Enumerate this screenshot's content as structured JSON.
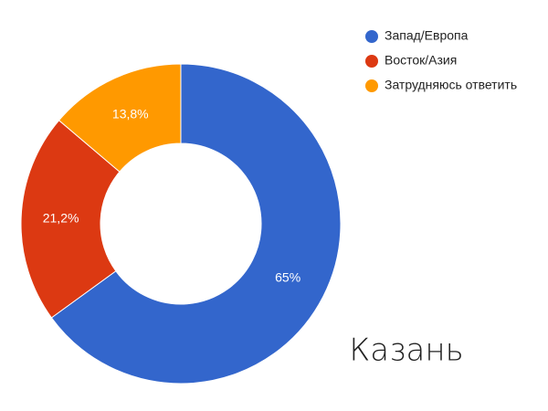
{
  "chart_data": {
    "type": "pie",
    "title": "Казань",
    "categories": [
      "Запад/Европа",
      "Восток/Азия",
      "Затрудняюсь ответить"
    ],
    "values": [
      65,
      21.2,
      13.8
    ],
    "value_labels": [
      "65%",
      "21,2%",
      "13,8%"
    ],
    "colors": [
      "#3366cc",
      "#dc3912",
      "#ff9900"
    ],
    "legend": "top-right"
  }
}
